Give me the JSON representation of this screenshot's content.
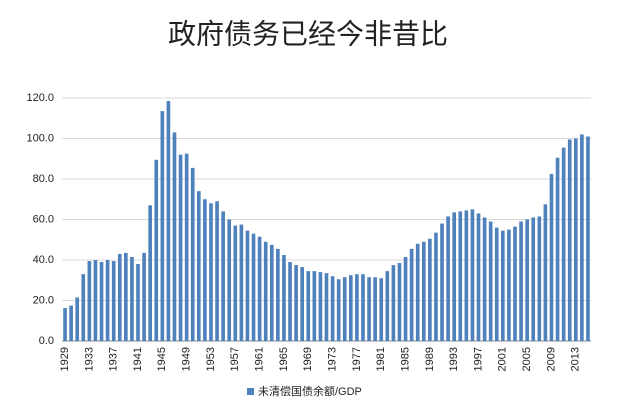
{
  "chart_data": {
    "type": "bar",
    "title": "政府债务已经今非昔比",
    "categories": [
      "1929",
      null,
      null,
      null,
      "1933",
      null,
      null,
      null,
      "1937",
      null,
      null,
      null,
      "1941",
      null,
      null,
      null,
      "1945",
      null,
      null,
      null,
      "1949",
      null,
      null,
      null,
      "1953",
      null,
      null,
      null,
      "1957",
      null,
      null,
      null,
      "1961",
      null,
      null,
      null,
      "1965",
      null,
      null,
      null,
      "1969",
      null,
      null,
      null,
      "1973",
      null,
      null,
      null,
      "1977",
      null,
      null,
      null,
      "1981",
      null,
      null,
      null,
      "1985",
      null,
      null,
      null,
      "1989",
      null,
      null,
      null,
      "1993",
      null,
      null,
      null,
      "1997",
      null,
      null,
      null,
      "2001",
      null,
      null,
      null,
      "2005",
      null,
      null,
      null,
      "2009",
      null,
      null,
      null,
      "2013",
      null,
      null
    ],
    "series": [
      {
        "name": "未清偿国债余额/GDP",
        "color": "#4f81bd",
        "values": [
          16.3,
          17.5,
          21.5,
          33,
          39.5,
          40,
          39,
          40,
          39.5,
          43,
          43.5,
          41.5,
          38,
          43.5,
          67,
          89.5,
          113.5,
          118.5,
          103,
          92,
          92.5,
          85.5,
          74,
          70,
          68,
          69,
          64,
          60,
          57,
          57.5,
          54.5,
          53,
          51.5,
          49,
          47.5,
          45.5,
          42.5,
          39,
          37.5,
          36.5,
          34.5,
          34.5,
          34,
          33.5,
          32,
          30.5,
          31.5,
          32.5,
          33,
          33,
          31.5,
          31.5,
          31,
          34.5,
          37.5,
          38.5,
          41.5,
          45.5,
          48,
          49,
          50.5,
          53.5,
          58,
          61.5,
          63.5,
          64,
          64.5,
          65,
          63,
          61,
          59,
          56,
          54.5,
          55,
          56.5,
          59,
          60,
          61,
          61.5,
          67.5,
          82.5,
          90.5,
          95.5,
          99.5,
          100,
          102,
          101
        ]
      }
    ],
    "ylim": [
      0,
      120
    ],
    "yticks": [
      {
        "value": 0,
        "label": "0.0"
      },
      {
        "value": 20,
        "label": "20.0"
      },
      {
        "value": 40,
        "label": "40.0"
      },
      {
        "value": 60,
        "label": "60.0"
      },
      {
        "value": 80,
        "label": "80.0"
      },
      {
        "value": 100,
        "label": "100.0"
      },
      {
        "value": 120,
        "label": "120.0"
      }
    ],
    "grid": true,
    "legend": "bottom"
  }
}
